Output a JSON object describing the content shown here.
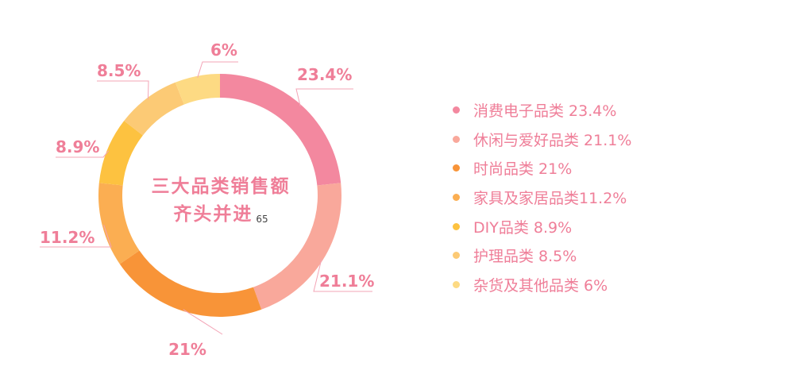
{
  "chart_data": {
    "type": "pie",
    "variant": "donut",
    "title": "三大品类销售额齐头并进",
    "title_lines": [
      "三大品类销售额",
      "齐头并进"
    ],
    "note": "65",
    "slices": [
      {
        "name": "消费电子品类",
        "value": 23.4,
        "label": "23.4%",
        "legend": "消费电子品类 23.4%",
        "color": "#f3889f"
      },
      {
        "name": "休闲与爱好品类",
        "value": 21.1,
        "label": "21.1%",
        "legend": "休闲与爱好品类 21.1%",
        "color": "#f9a89b"
      },
      {
        "name": "时尚品类",
        "value": 21,
        "label": "21%",
        "legend": "时尚品类 21%",
        "color": "#f89438"
      },
      {
        "name": "家具及家居品类",
        "value": 11.2,
        "label": "11.2%",
        "legend": "家具及家居品类11.2%",
        "color": "#fbae52"
      },
      {
        "name": "DIY品类",
        "value": 8.9,
        "label": "8.9%",
        "legend": "DIY品类 8.9%",
        "color": "#fdc240"
      },
      {
        "name": "护理品类",
        "value": 8.5,
        "label": "8.5%",
        "legend": "护理品类 8.5%",
        "color": "#fcca75"
      },
      {
        "name": "杂货及其他品类",
        "value": 6,
        "label": "6%",
        "legend": "杂货及其他品类 6%",
        "color": "#fdda83"
      }
    ],
    "label_color": "#ef7e98",
    "leader_color": "#f3a4b6",
    "legend_position": "right"
  }
}
